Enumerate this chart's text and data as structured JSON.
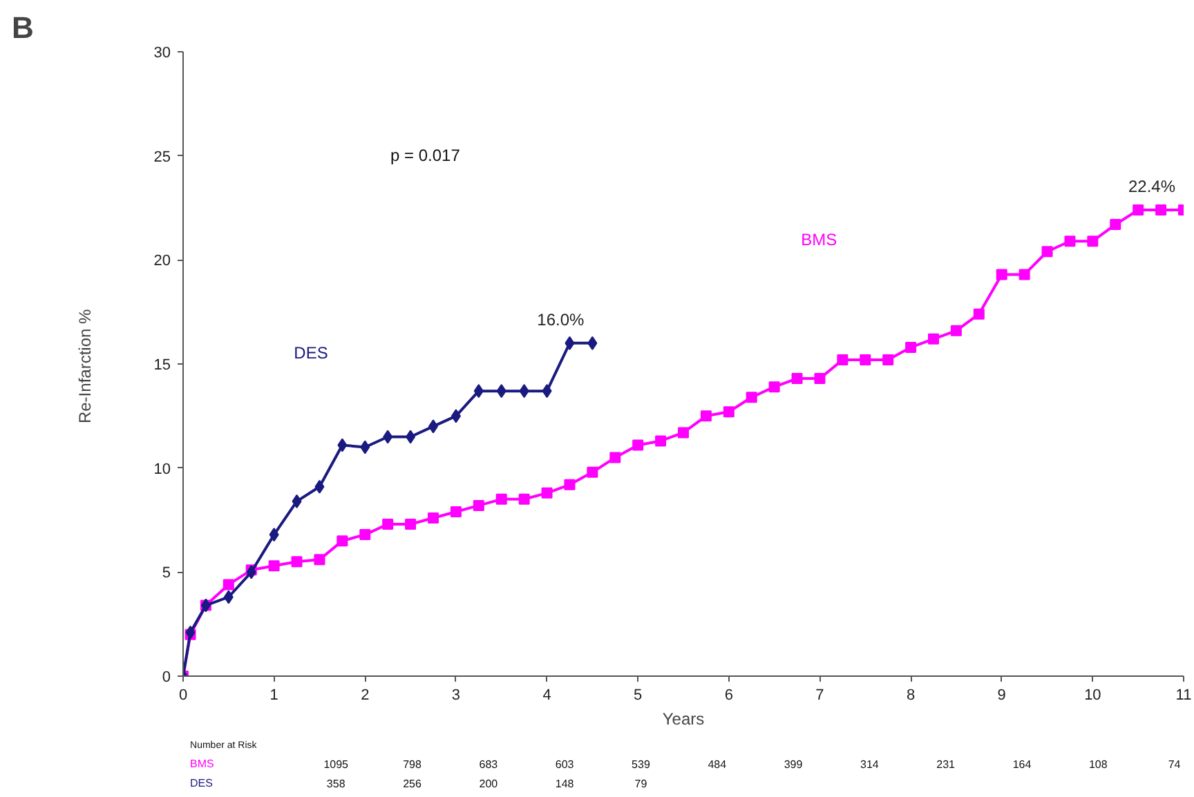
{
  "chart_data": {
    "type": "line",
    "xlabel": "Years",
    "ylabel": "Re-Infarction  %",
    "xlim": [
      0,
      11
    ],
    "ylim": [
      0,
      30
    ],
    "xticks": [
      0,
      1,
      2,
      3,
      4,
      5,
      6,
      7,
      8,
      9,
      10,
      11
    ],
    "yticks": [
      0,
      5,
      10,
      15,
      20,
      25,
      30
    ],
    "grid": false,
    "legend": false,
    "line_style": "solid",
    "series": [
      {
        "name": "BMS",
        "color": "#ff00ff",
        "marker": "square",
        "x": [
          0,
          0.08,
          0.25,
          0.5,
          0.75,
          1,
          1.25,
          1.5,
          1.75,
          2,
          2.25,
          2.5,
          2.75,
          3,
          3.25,
          3.5,
          3.75,
          4,
          4.25,
          4.5,
          4.75,
          5,
          5.25,
          5.5,
          5.75,
          6,
          6.25,
          6.5,
          6.75,
          7,
          7.25,
          7.5,
          7.75,
          8,
          8.25,
          8.5,
          8.75,
          9,
          9.25,
          9.5,
          9.75,
          10,
          10.25,
          10.5,
          10.75,
          11
        ],
        "values": [
          0,
          2.0,
          3.4,
          4.4,
          5.1,
          5.3,
          5.5,
          5.6,
          6.5,
          6.8,
          7.3,
          7.3,
          7.6,
          7.9,
          8.2,
          8.5,
          8.5,
          8.8,
          9.2,
          9.8,
          10.5,
          11.1,
          11.3,
          11.7,
          12.5,
          12.7,
          13.4,
          13.9,
          14.3,
          14.3,
          15.2,
          15.2,
          15.2,
          15.8,
          16.2,
          16.6,
          17.4,
          19.3,
          19.3,
          20.4,
          20.9,
          20.9,
          21.7,
          22.4,
          22.4,
          22.4
        ]
      },
      {
        "name": "DES",
        "color": "#1a1a80",
        "marker": "diamond",
        "x": [
          0,
          0.08,
          0.25,
          0.5,
          0.75,
          1,
          1.25,
          1.5,
          1.75,
          2,
          2.25,
          2.5,
          2.75,
          3,
          3.25,
          3.5,
          3.75,
          4,
          4.25,
          4.5
        ],
        "values": [
          0,
          2.1,
          3.4,
          3.8,
          5.0,
          6.8,
          8.4,
          9.1,
          11.1,
          11.0,
          11.5,
          11.5,
          12.0,
          12.5,
          13.7,
          13.7,
          13.7,
          13.7,
          16.0,
          16.0
        ]
      }
    ],
    "annotations": [
      "B",
      "p = 0.017",
      "Number at Risk",
      {
        "text": "22.4%",
        "x": 11,
        "y": 22.4
      },
      {
        "text": "16.0%",
        "x": 4.5,
        "y": 16.0
      },
      "1095",
      "798",
      "683",
      "603",
      "539",
      "484",
      "399",
      "314",
      "231",
      "164",
      "108",
      "74",
      "358",
      "256",
      "200",
      "148",
      "79"
    ]
  }
}
